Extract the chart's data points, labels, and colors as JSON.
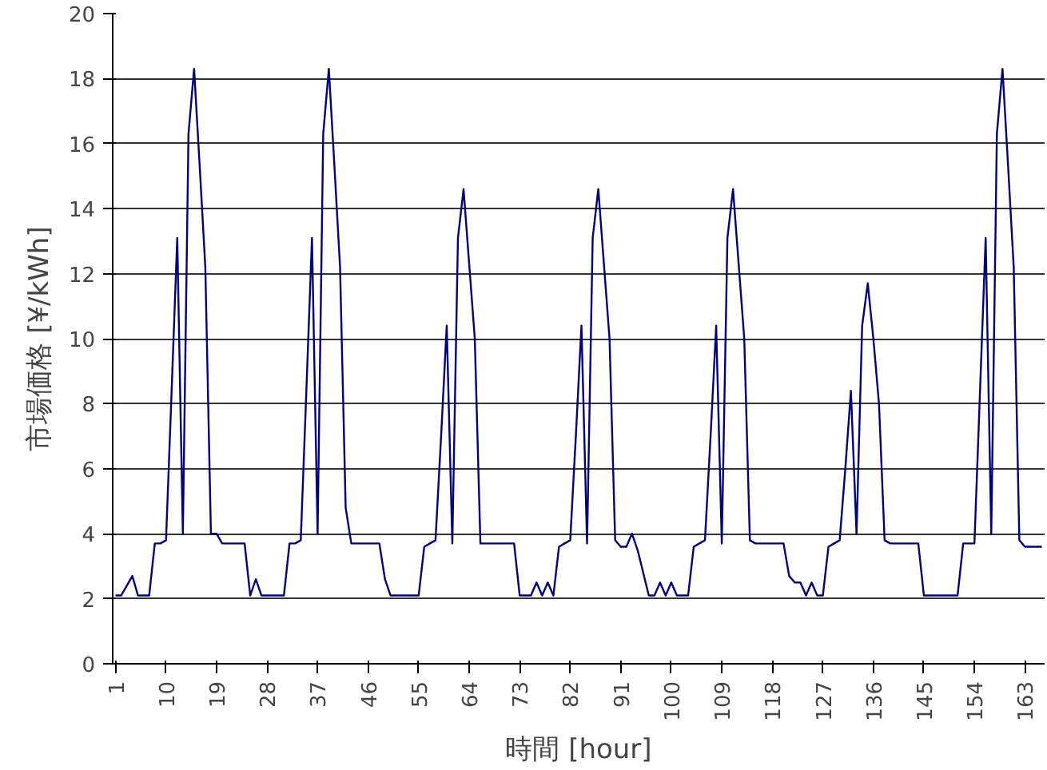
{
  "chart_data": {
    "type": "line",
    "xlabel": "時間 [hour]",
    "ylabel": "市場価格 [¥/kWh]",
    "categories": [
      "1",
      null,
      null,
      null,
      null,
      null,
      null,
      null,
      null,
      "10",
      null,
      null,
      null,
      null,
      null,
      null,
      null,
      null,
      "19",
      null,
      null,
      null,
      null,
      null,
      null,
      null,
      null,
      "28",
      null,
      null,
      null,
      null,
      null,
      null,
      null,
      null,
      "37",
      null,
      null,
      null,
      null,
      null,
      null,
      null,
      null,
      "46",
      null,
      null,
      null,
      null,
      null,
      null,
      null,
      null,
      "55",
      null,
      null,
      null,
      null,
      null,
      null,
      null,
      null,
      "64",
      null,
      null,
      null,
      null,
      null,
      null,
      null,
      null,
      "73",
      null,
      null,
      null,
      null,
      null,
      null,
      null,
      null,
      "82",
      null,
      null,
      null,
      null,
      null,
      null,
      null,
      null,
      "91",
      null,
      null,
      null,
      null,
      null,
      null,
      null,
      null,
      "100",
      null,
      null,
      null,
      null,
      null,
      null,
      null,
      null,
      "109",
      null,
      null,
      null,
      null,
      null,
      null,
      null,
      null,
      "118",
      null,
      null,
      null,
      null,
      null,
      null,
      null,
      null,
      "127",
      null,
      null,
      null,
      null,
      null,
      null,
      null,
      null,
      "136",
      null,
      null,
      null,
      null,
      null,
      null,
      null,
      null,
      "145",
      null,
      null,
      null,
      null,
      null,
      null,
      null,
      null,
      "154",
      null,
      null,
      null,
      null,
      null,
      null,
      null,
      null,
      "163",
      null,
      null,
      null
    ],
    "series": [
      {
        "color": "#000080",
        "values": [
          2.1,
          2.1,
          2.4,
          2.7,
          2.1,
          2.1,
          2.1,
          3.7,
          3.7,
          3.8,
          8.4,
          13.1,
          4.0,
          16.3,
          18.3,
          15.3,
          12.2,
          4.0,
          4.0,
          3.7,
          3.7,
          3.7,
          3.7,
          3.7,
          2.1,
          2.6,
          2.1,
          2.1,
          2.1,
          2.1,
          2.1,
          3.7,
          3.7,
          3.8,
          8.4,
          13.1,
          4.0,
          16.3,
          18.3,
          15.3,
          12.2,
          4.8,
          3.7,
          3.7,
          3.7,
          3.7,
          3.7,
          3.7,
          2.6,
          2.1,
          2.1,
          2.1,
          2.1,
          2.1,
          2.1,
          3.6,
          3.7,
          3.8,
          7.0,
          10.4,
          3.7,
          13.1,
          14.6,
          12.3,
          10.0,
          3.7,
          3.7,
          3.7,
          3.7,
          3.7,
          3.7,
          3.7,
          2.1,
          2.1,
          2.1,
          2.5,
          2.1,
          2.5,
          2.1,
          3.6,
          3.7,
          3.8,
          7.0,
          10.4,
          3.7,
          13.1,
          14.6,
          12.3,
          10.0,
          3.8,
          3.6,
          3.6,
          4.0,
          3.5,
          2.8,
          2.1,
          2.1,
          2.5,
          2.1,
          2.5,
          2.1,
          2.1,
          2.1,
          3.6,
          3.7,
          3.8,
          7.0,
          10.4,
          3.7,
          13.1,
          14.6,
          12.3,
          10.0,
          3.8,
          3.7,
          3.7,
          3.7,
          3.7,
          3.7,
          3.7,
          2.7,
          2.5,
          2.5,
          2.1,
          2.5,
          2.1,
          2.1,
          3.6,
          3.7,
          3.8,
          6.0,
          8.4,
          4.0,
          10.4,
          11.7,
          10.0,
          8.0,
          3.8,
          3.7,
          3.7,
          3.7,
          3.7,
          3.7,
          3.7,
          2.1,
          2.1,
          2.1,
          2.1,
          2.1,
          2.1,
          2.1,
          3.7,
          3.7,
          3.7,
          8.4,
          13.1,
          4.0,
          16.3,
          18.3,
          15.3,
          12.2,
          3.8,
          3.6,
          3.6,
          3.6,
          3.6
        ]
      }
    ],
    "ylim": [
      0,
      20
    ],
    "yticks": [
      0,
      2,
      4,
      6,
      8,
      10,
      12,
      14,
      16,
      18,
      20
    ],
    "grid": "y",
    "marker": "none",
    "line_style": "solid"
  }
}
